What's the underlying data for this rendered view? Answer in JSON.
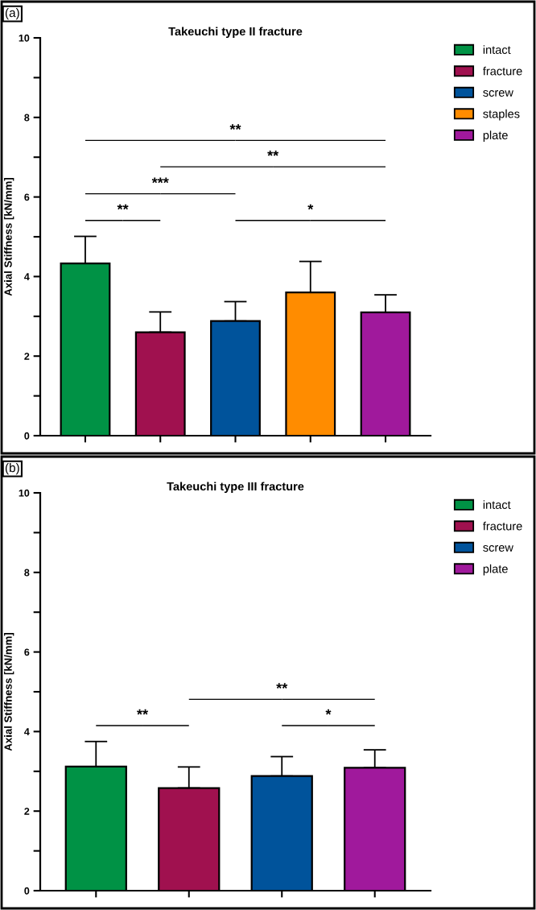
{
  "chart_data": [
    {
      "type": "bar",
      "title": "Takeuchi type II fracture",
      "ylabel": "Axial Stiffness [kN/mm]",
      "categories": [
        null,
        null,
        null,
        null,
        null
      ],
      "series": [
        {
          "name": "intact",
          "color": "#009245",
          "values": [
            4.33,
            null,
            null,
            null,
            null
          ],
          "errors": [
            [
              4.33,
              5.01
            ],
            null,
            null,
            null,
            null
          ]
        },
        {
          "name": "fracture",
          "color": "#a0114f",
          "values": [
            null,
            2.6,
            null,
            null,
            null
          ],
          "errors": [
            null,
            [
              2.6,
              3.11
            ],
            null,
            null,
            null
          ]
        },
        {
          "name": "screw",
          "color": "#00539b",
          "values": [
            null,
            null,
            2.88,
            null,
            null
          ],
          "errors": [
            null,
            null,
            [
              2.88,
              3.37
            ],
            null,
            null
          ]
        },
        {
          "name": "staples",
          "color": "#ff8c00",
          "values": [
            null,
            null,
            null,
            3.6,
            null
          ],
          "errors": [
            null,
            null,
            null,
            [
              3.6,
              4.38
            ],
            null
          ]
        },
        {
          "name": "plate",
          "color": "#a0199c",
          "values": [
            null,
            null,
            null,
            null,
            3.1
          ],
          "errors": [
            null,
            null,
            null,
            null,
            [
              3.1,
              3.54
            ]
          ]
        }
      ],
      "ylim": [
        0,
        10
      ],
      "yticks": [
        0,
        {
          "value": 1,
          "label": null
        },
        2,
        {
          "value": 3,
          "label": null
        },
        4,
        {
          "value": 5,
          "label": null
        },
        6,
        {
          "value": 7,
          "label": null
        },
        8,
        {
          "value": 9,
          "label": null
        },
        10
      ],
      "legend": "top right",
      "grid": false,
      "annotations": [
        "(a)",
        "**",
        "**",
        "***",
        "**",
        "*"
      ]
    },
    {
      "type": "bar",
      "title": "Takeuchi type III fracture",
      "ylabel": "Axial Stiffness [kN/mm]",
      "categories": [
        null,
        null,
        null,
        null
      ],
      "series": [
        {
          "name": "intact",
          "color": "#009245",
          "values": [
            3.12,
            null,
            null,
            null
          ],
          "errors": [
            [
              3.12,
              3.75
            ],
            null,
            null,
            null
          ]
        },
        {
          "name": "fracture",
          "color": "#a0114f",
          "values": [
            null,
            2.58,
            null,
            null
          ],
          "errors": [
            null,
            [
              2.58,
              3.11
            ],
            null,
            null
          ]
        },
        {
          "name": "screw",
          "color": "#00539b",
          "values": [
            null,
            null,
            2.88,
            null
          ],
          "errors": [
            null,
            null,
            [
              2.88,
              3.37
            ],
            null
          ]
        },
        {
          "name": "plate",
          "color": "#a0199c",
          "values": [
            null,
            null,
            null,
            3.09
          ],
          "errors": [
            null,
            null,
            null,
            [
              3.09,
              3.54
            ]
          ]
        }
      ],
      "ylim": [
        0,
        10
      ],
      "yticks": [
        0,
        {
          "value": 1,
          "label": null
        },
        2,
        {
          "value": 3,
          "label": null
        },
        4,
        {
          "value": 5,
          "label": null
        },
        6,
        {
          "value": 7,
          "label": null
        },
        8,
        {
          "value": 9,
          "label": null
        },
        10
      ],
      "legend": "top right",
      "grid": false,
      "annotations": [
        "(b)",
        "**",
        "**",
        "*"
      ]
    }
  ]
}
